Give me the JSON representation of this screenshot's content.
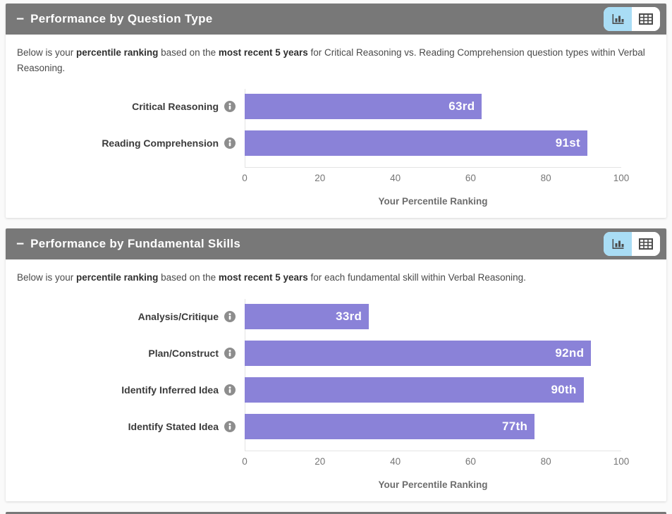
{
  "colors": {
    "panel_header_bg": "#787878",
    "panel_title_text": "#ffffff",
    "bar": "#8a82d8",
    "bar_value_text": "#ffffff",
    "active_toggle_bg": "#a9ddf5",
    "axis_text": "#767676",
    "category_text": "#3b3b3b"
  },
  "icons": {
    "collapse": "−",
    "chart_view": "bar-chart-icon",
    "table_view": "table-icon",
    "info": "info-icon"
  },
  "panels": [
    {
      "title": "Performance by Question Type",
      "collapse_icon": "−",
      "description_segments": [
        {
          "text": "Below is your ",
          "bold": false
        },
        {
          "text": "percentile ranking",
          "bold": true
        },
        {
          "text": " based on the ",
          "bold": false
        },
        {
          "text": "most recent 5 years",
          "bold": true
        },
        {
          "text": " for Critical Reasoning vs. Reading Comprehension question types within Verbal Reasoning.",
          "bold": false
        }
      ],
      "chart_index": 0
    },
    {
      "title": "Performance by Fundamental Skills",
      "collapse_icon": "−",
      "description_segments": [
        {
          "text": "Below is your ",
          "bold": false
        },
        {
          "text": "percentile ranking",
          "bold": true
        },
        {
          "text": " based on the ",
          "bold": false
        },
        {
          "text": "most recent 5 years",
          "bold": true
        },
        {
          "text": " for each fundamental skill within Verbal Reasoning.",
          "bold": false
        }
      ],
      "chart_index": 1
    }
  ],
  "chart_data": [
    {
      "type": "bar",
      "orientation": "horizontal",
      "categories": [
        "Critical Reasoning",
        "Reading Comprehension"
      ],
      "values": [
        63,
        91
      ],
      "value_labels": [
        "63rd",
        "91st"
      ],
      "xlabel": "Your Percentile Ranking",
      "xlim": [
        0,
        100
      ],
      "xticks": [
        0,
        20,
        40,
        60,
        80,
        100
      ],
      "bar_color": "#8a82d8",
      "grid": false,
      "legend": false
    },
    {
      "type": "bar",
      "orientation": "horizontal",
      "categories": [
        "Analysis/Critique",
        "Plan/Construct",
        "Identify Inferred Idea",
        "Identify Stated Idea"
      ],
      "values": [
        33,
        92,
        90,
        77
      ],
      "value_labels": [
        "33rd",
        "92nd",
        "90th",
        "77th"
      ],
      "xlabel": "Your Percentile Ranking",
      "xlim": [
        0,
        100
      ],
      "xticks": [
        0,
        20,
        40,
        60,
        80,
        100
      ],
      "bar_color": "#8a82d8",
      "grid": false,
      "legend": false
    }
  ]
}
